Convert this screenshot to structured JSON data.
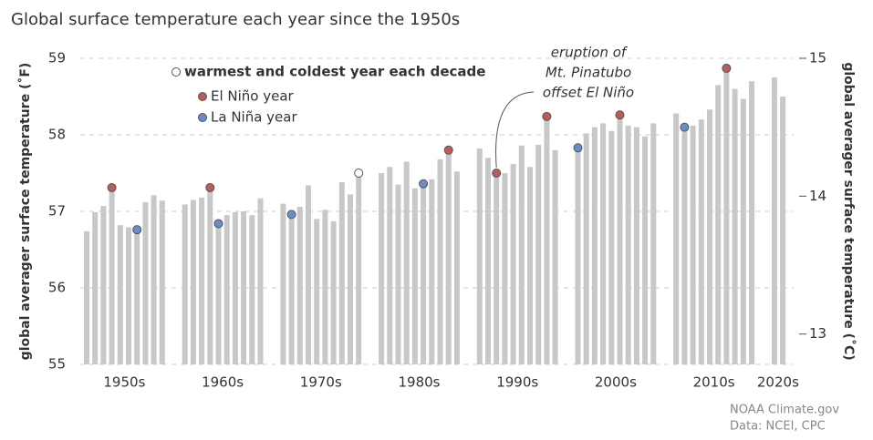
{
  "chart_data": {
    "type": "bar",
    "title": "Global surface temperature each year since the 1950s",
    "ylabel": "global averager surface temperature (˚F)",
    "y2label": "global averager surface temperature (˚C)",
    "ylim": [
      55,
      59
    ],
    "yticks": [
      55,
      56,
      57,
      58,
      59
    ],
    "y2lim": [
      12.78,
      15
    ],
    "y2ticks": [
      13,
      14,
      15
    ],
    "grid": true,
    "color": "#c8c8c8",
    "groups": [
      {
        "label": "1950s",
        "values": [
          56.74,
          56.99,
          57.07,
          57.31,
          56.82,
          56.79,
          56.76,
          57.12,
          57.21,
          57.14
        ]
      },
      {
        "label": "1960s",
        "values": [
          57.09,
          57.15,
          57.18,
          57.31,
          56.84,
          56.95,
          56.99,
          57.0,
          56.95,
          57.17
        ]
      },
      {
        "label": "1970s",
        "values": [
          57.1,
          56.96,
          57.06,
          57.34,
          56.9,
          57.02,
          56.87,
          57.38,
          57.22,
          57.5
        ]
      },
      {
        "label": "1980s",
        "values": [
          57.5,
          57.58,
          57.35,
          57.65,
          57.3,
          57.36,
          57.42,
          57.68,
          57.8,
          57.52
        ]
      },
      {
        "label": "1990s",
        "values": [
          57.82,
          57.7,
          57.5,
          57.5,
          57.62,
          57.86,
          57.58,
          57.87,
          58.24,
          57.8
        ]
      },
      {
        "label": "2000s",
        "values": [
          57.83,
          58.02,
          58.1,
          58.15,
          58.05,
          58.26,
          58.12,
          58.1,
          57.98,
          58.15
        ]
      },
      {
        "label": "2010s",
        "values": [
          58.28,
          58.1,
          58.12,
          58.2,
          58.33,
          58.65,
          58.87,
          58.6,
          58.47,
          58.7
        ]
      },
      {
        "label": "2020s",
        "values": [
          58.75,
          58.5
        ]
      }
    ],
    "legend": [
      {
        "label": "warmest and coldest year each decade",
        "color": "#ffffff"
      },
      {
        "label": "El Niño year",
        "color": "#b85c5c"
      },
      {
        "label": "La Niña year",
        "color": "#6a8cc8"
      }
    ],
    "markers": [
      {
        "group": 0,
        "index": 3,
        "kind": 1
      },
      {
        "group": 0,
        "index": 6,
        "kind": 2
      },
      {
        "group": 1,
        "index": 3,
        "kind": 1
      },
      {
        "group": 1,
        "index": 4,
        "kind": 2
      },
      {
        "group": 2,
        "index": 1,
        "kind": 2
      },
      {
        "group": 2,
        "index": 9,
        "kind": 0
      },
      {
        "group": 3,
        "index": 5,
        "kind": 2
      },
      {
        "group": 3,
        "index": 8,
        "kind": 1
      },
      {
        "group": 4,
        "index": 2,
        "kind": 1
      },
      {
        "group": 4,
        "index": 8,
        "kind": 1
      },
      {
        "group": 5,
        "index": 0,
        "kind": 2
      },
      {
        "group": 5,
        "index": 5,
        "kind": 1
      },
      {
        "group": 6,
        "index": 1,
        "kind": 2
      },
      {
        "group": 6,
        "index": 6,
        "kind": 1
      }
    ],
    "annotation": {
      "lines": [
        "eruption of",
        "Mt. Pinatubo",
        "offset El Niño"
      ],
      "group": 4,
      "index": 2
    },
    "source": [
      "NOAA Climate.gov",
      "Data: NCEI, CPC"
    ]
  }
}
